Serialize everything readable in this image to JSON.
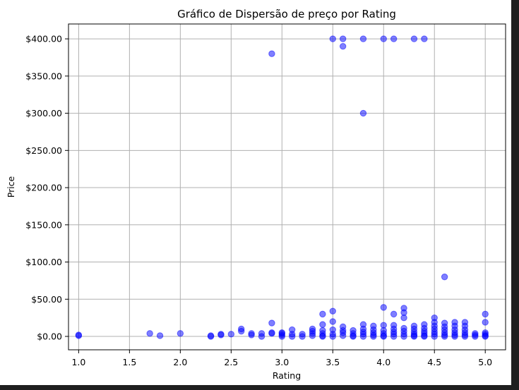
{
  "chart_data": {
    "type": "scatter",
    "title": "Gráfico de Dispersão de preço por Rating",
    "xlabel": "Rating",
    "ylabel": "Price",
    "xlim": [
      0.9,
      5.2
    ],
    "ylim": [
      -18,
      420
    ],
    "x_ticks": [
      1.0,
      1.5,
      2.0,
      2.5,
      3.0,
      3.5,
      4.0,
      4.5,
      5.0
    ],
    "x_tick_labels": [
      "1.0",
      "1.5",
      "2.0",
      "2.5",
      "3.0",
      "3.5",
      "4.0",
      "4.5",
      "5.0"
    ],
    "y_ticks": [
      0,
      50,
      100,
      150,
      200,
      250,
      300,
      350,
      400
    ],
    "y_tick_labels": [
      "$0.00",
      "$50.00",
      "$100.00",
      "$150.00",
      "$200.00",
      "$250.00",
      "$300.00",
      "$350.00",
      "$400.00"
    ],
    "grid": true,
    "marker_color": "#0000ff",
    "marker_alpha": 0.5,
    "points": [
      [
        1.0,
        1
      ],
      [
        1.0,
        2
      ],
      [
        1.7,
        4
      ],
      [
        1.8,
        1
      ],
      [
        2.0,
        4
      ],
      [
        2.3,
        0
      ],
      [
        2.3,
        1
      ],
      [
        2.4,
        2
      ],
      [
        2.4,
        3
      ],
      [
        2.5,
        3
      ],
      [
        2.6,
        7
      ],
      [
        2.6,
        10
      ],
      [
        2.7,
        2
      ],
      [
        2.7,
        4
      ],
      [
        2.8,
        0
      ],
      [
        2.8,
        4
      ],
      [
        2.9,
        380
      ],
      [
        2.9,
        18
      ],
      [
        2.9,
        4
      ],
      [
        2.9,
        5
      ],
      [
        3.0,
        0
      ],
      [
        3.0,
        2
      ],
      [
        3.0,
        4
      ],
      [
        3.0,
        5
      ],
      [
        3.1,
        0
      ],
      [
        3.1,
        3
      ],
      [
        3.1,
        9
      ],
      [
        3.2,
        0
      ],
      [
        3.2,
        3
      ],
      [
        3.3,
        1
      ],
      [
        3.3,
        4
      ],
      [
        3.3,
        7
      ],
      [
        3.3,
        10
      ],
      [
        3.4,
        30
      ],
      [
        3.4,
        16
      ],
      [
        3.4,
        8
      ],
      [
        3.4,
        4
      ],
      [
        3.4,
        1
      ],
      [
        3.4,
        0
      ],
      [
        3.5,
        400
      ],
      [
        3.5,
        34
      ],
      [
        3.5,
        20
      ],
      [
        3.5,
        9
      ],
      [
        3.5,
        3
      ],
      [
        3.5,
        0
      ],
      [
        3.6,
        400
      ],
      [
        3.6,
        390
      ],
      [
        3.6,
        13
      ],
      [
        3.6,
        8
      ],
      [
        3.6,
        5
      ],
      [
        3.6,
        1
      ],
      [
        3.7,
        8
      ],
      [
        3.7,
        4
      ],
      [
        3.7,
        1
      ],
      [
        3.7,
        0
      ],
      [
        3.8,
        400
      ],
      [
        3.8,
        300
      ],
      [
        3.8,
        16
      ],
      [
        3.8,
        10
      ],
      [
        3.8,
        6
      ],
      [
        3.8,
        3
      ],
      [
        3.8,
        0
      ],
      [
        3.9,
        14
      ],
      [
        3.9,
        9
      ],
      [
        3.9,
        5
      ],
      [
        3.9,
        2
      ],
      [
        3.9,
        0
      ],
      [
        4.0,
        400
      ],
      [
        4.0,
        39
      ],
      [
        4.0,
        15
      ],
      [
        4.0,
        8
      ],
      [
        4.0,
        4
      ],
      [
        4.0,
        1
      ],
      [
        4.0,
        0
      ],
      [
        4.1,
        400
      ],
      [
        4.1,
        30
      ],
      [
        4.1,
        15
      ],
      [
        4.1,
        10
      ],
      [
        4.1,
        6
      ],
      [
        4.1,
        3
      ],
      [
        4.1,
        0
      ],
      [
        4.2,
        38
      ],
      [
        4.2,
        32
      ],
      [
        4.2,
        25
      ],
      [
        4.2,
        11
      ],
      [
        4.2,
        7
      ],
      [
        4.2,
        3
      ],
      [
        4.2,
        0
      ],
      [
        4.3,
        400
      ],
      [
        4.3,
        14
      ],
      [
        4.3,
        10
      ],
      [
        4.3,
        6
      ],
      [
        4.3,
        3
      ],
      [
        4.3,
        1
      ],
      [
        4.3,
        0
      ],
      [
        4.4,
        400
      ],
      [
        4.4,
        16
      ],
      [
        4.4,
        11
      ],
      [
        4.4,
        7
      ],
      [
        4.4,
        4
      ],
      [
        4.4,
        1
      ],
      [
        4.4,
        0
      ],
      [
        4.5,
        25
      ],
      [
        4.5,
        19
      ],
      [
        4.5,
        14
      ],
      [
        4.5,
        10
      ],
      [
        4.5,
        6
      ],
      [
        4.5,
        3
      ],
      [
        4.5,
        0
      ],
      [
        4.6,
        80
      ],
      [
        4.6,
        18
      ],
      [
        4.6,
        13
      ],
      [
        4.6,
        9
      ],
      [
        4.6,
        5
      ],
      [
        4.6,
        2
      ],
      [
        4.6,
        0
      ],
      [
        4.7,
        19
      ],
      [
        4.7,
        14
      ],
      [
        4.7,
        9
      ],
      [
        4.7,
        5
      ],
      [
        4.7,
        2
      ],
      [
        4.7,
        0
      ],
      [
        4.8,
        19
      ],
      [
        4.8,
        14
      ],
      [
        4.8,
        9
      ],
      [
        4.8,
        5
      ],
      [
        4.8,
        2
      ],
      [
        4.8,
        0
      ],
      [
        4.9,
        4
      ],
      [
        4.9,
        2
      ],
      [
        4.9,
        0
      ],
      [
        5.0,
        30
      ],
      [
        5.0,
        19
      ],
      [
        5.0,
        5
      ],
      [
        5.0,
        3
      ],
      [
        5.0,
        1
      ],
      [
        5.0,
        0
      ]
    ]
  }
}
